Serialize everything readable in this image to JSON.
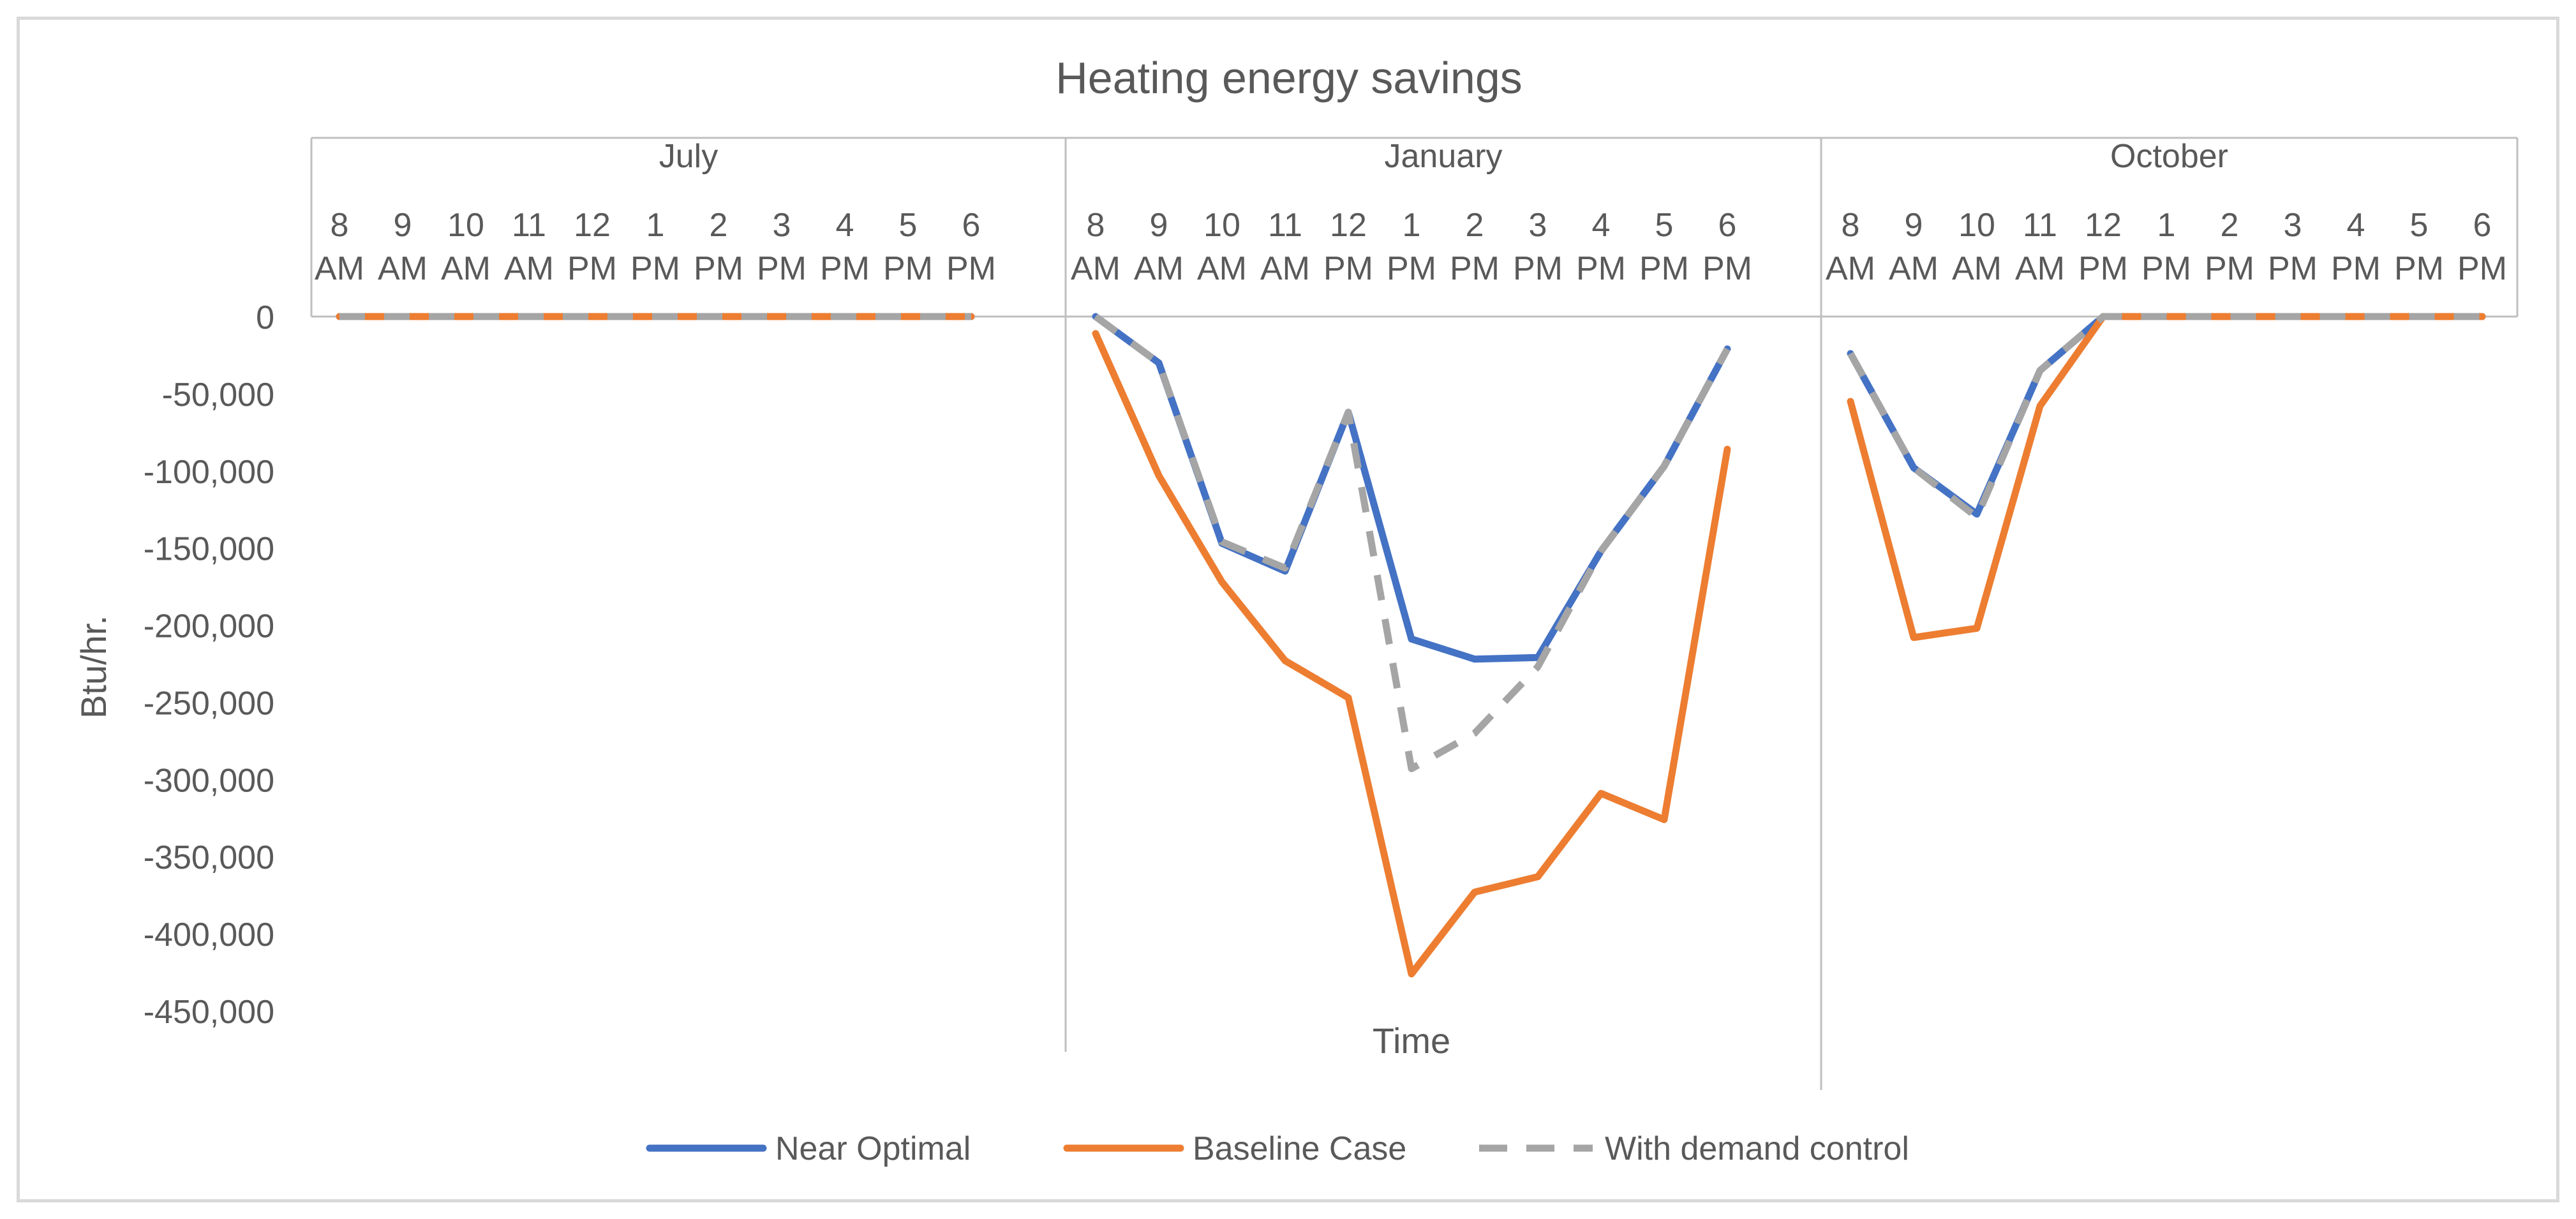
{
  "chart_data": {
    "type": "line",
    "title": "Heating energy savings",
    "xlabel": "Time",
    "ylabel": "Btu/hr.",
    "ylim": [
      -450000,
      0
    ],
    "yticks": [
      0,
      -50000,
      -100000,
      -150000,
      -200000,
      -250000,
      -300000,
      -350000,
      -400000,
      -450000
    ],
    "ytick_labels": [
      "0",
      "-50,000",
      "-100,000",
      "-150,000",
      "-200,000",
      "-250,000",
      "-300,000",
      "-350,000",
      "-400,000",
      "-450,000"
    ],
    "hour_labels": [
      [
        "8",
        "AM"
      ],
      [
        "9",
        "AM"
      ],
      [
        "10",
        "AM"
      ],
      [
        "11",
        "AM"
      ],
      [
        "12",
        "PM"
      ],
      [
        "1",
        "PM"
      ],
      [
        "2",
        "PM"
      ],
      [
        "3",
        "PM"
      ],
      [
        "4",
        "PM"
      ],
      [
        "5",
        "PM"
      ],
      [
        "6",
        "PM"
      ]
    ],
    "groups": [
      "July",
      "January",
      "October"
    ],
    "grid": false,
    "legend_position": "bottom",
    "series": [
      {
        "name": "Near Optimal",
        "color": "#4472c4",
        "dash": "solid",
        "values": [
          [
            0,
            0,
            0,
            0,
            0,
            0,
            0,
            0,
            0,
            0,
            0
          ],
          [
            0,
            -30000,
            -147000,
            -165000,
            -62000,
            -209000,
            -222000,
            -221000,
            -152000,
            -97000,
            -21000
          ],
          [
            -24000,
            -98000,
            -128000,
            -35000,
            0,
            0,
            0,
            0,
            0,
            0,
            0
          ]
        ]
      },
      {
        "name": "Baseline Case",
        "color": "#ed7d31",
        "dash": "solid",
        "values": [
          [
            0,
            0,
            0,
            0,
            0,
            0,
            0,
            0,
            0,
            0,
            0
          ],
          [
            -11000,
            -103000,
            -172000,
            -223000,
            -247000,
            -426000,
            -373000,
            -363000,
            -309000,
            -326000,
            -86000
          ],
          [
            -55000,
            -208000,
            -202000,
            -58000,
            0,
            0,
            0,
            0,
            0,
            0,
            0
          ]
        ]
      },
      {
        "name": "With demand control",
        "color": "#a5a5a5",
        "dash": "dashed",
        "values": [
          [
            0,
            0,
            0,
            0,
            0,
            0,
            0,
            0,
            0,
            0,
            0
          ],
          [
            0,
            -30000,
            -146000,
            -163000,
            -62000,
            -293000,
            -270000,
            -227000,
            -152000,
            -97000,
            -21000
          ],
          [
            -24000,
            -98000,
            -130000,
            -35000,
            0,
            0,
            0,
            0,
            0,
            0,
            0
          ]
        ]
      }
    ]
  }
}
